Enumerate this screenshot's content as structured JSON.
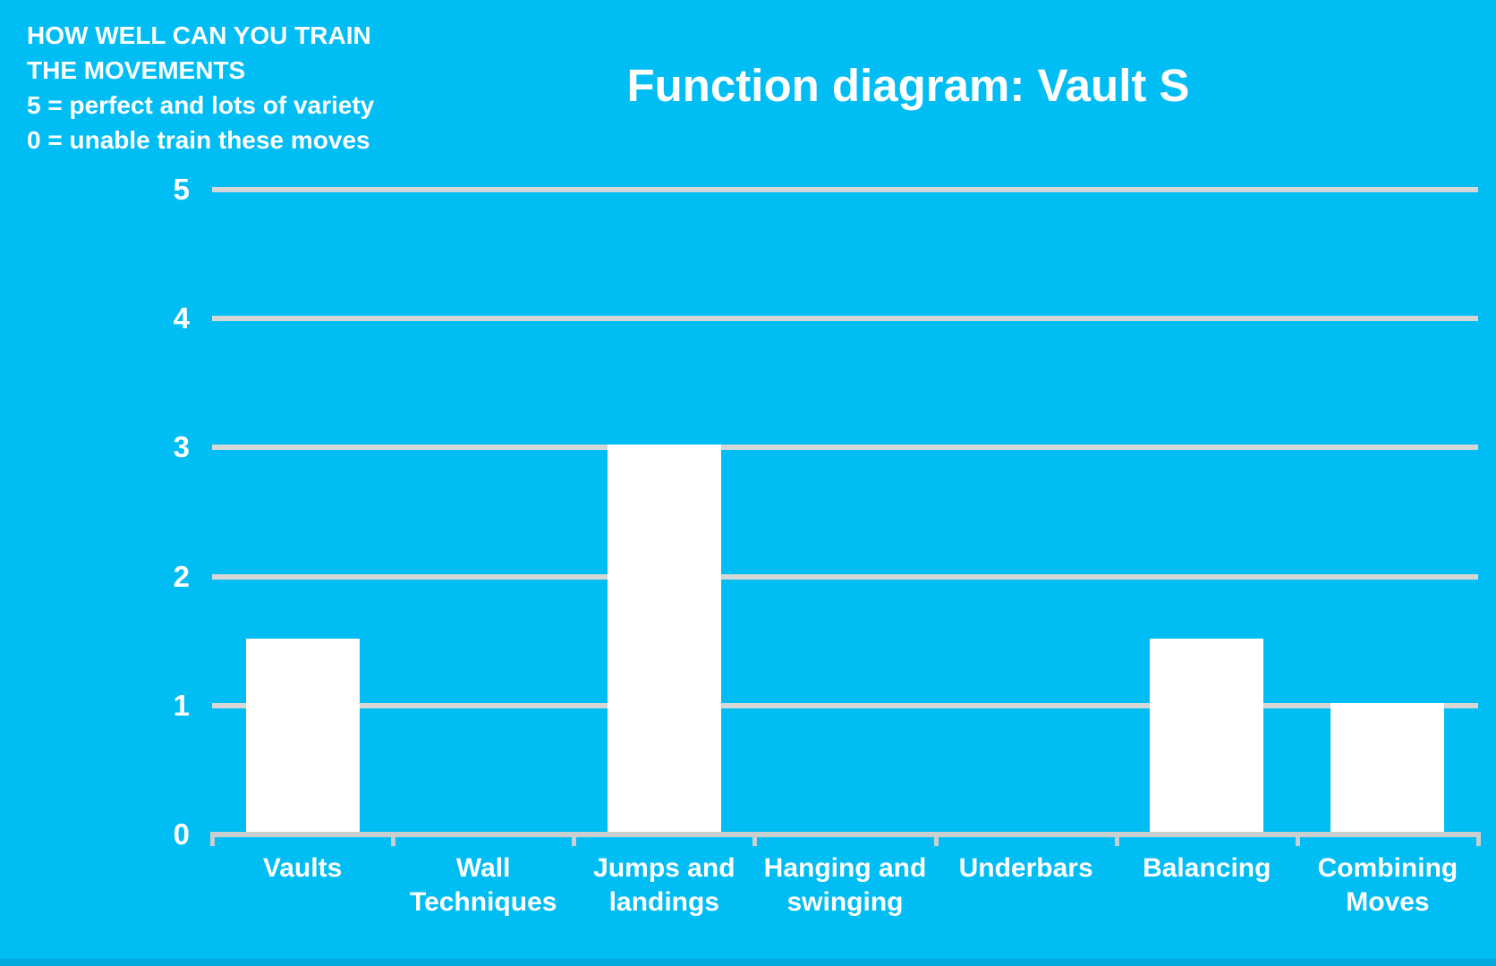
{
  "page": {
    "background_color": "#00bdf4",
    "text_color": "#ffffff"
  },
  "note": {
    "lines": [
      "HOW WELL CAN YOU TRAIN",
      "THE MOVEMENTS",
      "5 = perfect and lots of variety",
      "0 = unable train these moves"
    ]
  },
  "chart_data": {
    "type": "bar",
    "title": "Function diagram: Vault S",
    "categories": [
      "Vaults",
      "Wall Techniques",
      "Jumps and landings",
      "Hanging and swinging",
      "Underbars",
      "Balancing",
      "Combining Moves"
    ],
    "values": [
      1.5,
      0,
      3,
      0,
      0,
      1.5,
      1
    ],
    "yticks": [
      0,
      1,
      2,
      3,
      4,
      5
    ],
    "ylim": [
      0,
      5
    ],
    "xlabel": "",
    "ylabel": "",
    "grid": true,
    "legend": false,
    "bar_color": "#ffffff",
    "gridline_color": "#d5d7d6",
    "axis_color": "#c9cfce"
  }
}
